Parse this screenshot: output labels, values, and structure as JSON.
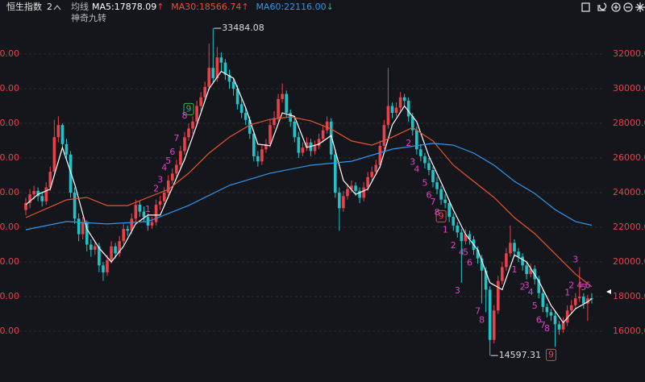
{
  "header": {
    "title": "恒生指数",
    "count": "2",
    "ma_label": "均线",
    "indicator": "神奇九转"
  },
  "chart_data": {
    "type": "candlestick",
    "up_color": "#e8414a",
    "down_color": "#21c3c8",
    "ylim": [
      13600,
      34400
    ],
    "yticks": [
      {
        "value": 16000,
        "label": "16000.00"
      },
      {
        "value": 18000,
        "label": "18000.00"
      },
      {
        "value": 20000,
        "label": "20000.00"
      },
      {
        "value": 22000,
        "label": "22000.00"
      },
      {
        "value": 24000,
        "label": "24000.00"
      },
      {
        "value": 26000,
        "label": "26000.00"
      },
      {
        "value": 28000,
        "label": "28000.00"
      },
      {
        "value": 30000,
        "label": "30000.00"
      },
      {
        "value": 32000,
        "label": "32000.00"
      }
    ],
    "grid": true,
    "high_index": 46,
    "low_index": 114,
    "candles": [
      [
        23000,
        23700,
        22700,
        23400
      ],
      [
        23400,
        24200,
        23100,
        23900
      ],
      [
        23900,
        24400,
        23600,
        24100
      ],
      [
        24100,
        24300,
        23500,
        23800
      ],
      [
        23800,
        24000,
        23200,
        23500
      ],
      [
        23500,
        24600,
        23300,
        24300
      ],
      [
        24300,
        25500,
        24100,
        25200
      ],
      [
        25200,
        28200,
        25000,
        27200
      ],
      [
        27200,
        28400,
        26900,
        27900
      ],
      [
        27900,
        28000,
        26500,
        26800
      ],
      [
        26800,
        27100,
        25900,
        26200
      ],
      [
        26200,
        26400,
        23700,
        24000
      ],
      [
        24000,
        24300,
        22200,
        22500
      ],
      [
        22500,
        22800,
        21200,
        21600
      ],
      [
        21600,
        22600,
        21300,
        22300
      ],
      [
        22300,
        22400,
        20600,
        21000
      ],
      [
        21000,
        21300,
        20300,
        20700
      ],
      [
        20700,
        21200,
        20400,
        20900
      ],
      [
        20900,
        21100,
        19400,
        19800
      ],
      [
        19800,
        20000,
        18900,
        19400
      ],
      [
        19400,
        20400,
        19200,
        20100
      ],
      [
        20100,
        21200,
        19900,
        20900
      ],
      [
        20900,
        21100,
        20200,
        20500
      ],
      [
        20500,
        21500,
        20300,
        21200
      ],
      [
        21200,
        22200,
        21000,
        21900
      ],
      [
        21900,
        22100,
        21500,
        21800
      ],
      [
        21800,
        22800,
        21600,
        22500
      ],
      [
        22500,
        23600,
        22300,
        23300
      ],
      [
        23300,
        23500,
        22600,
        22900
      ],
      [
        22900,
        23200,
        22300,
        22600
      ],
      [
        22600,
        22800,
        21800,
        22100
      ],
      [
        22100,
        22600,
        21900,
        22300
      ],
      [
        22300,
        23600,
        22100,
        23300
      ],
      [
        23300,
        23800,
        23000,
        23500
      ],
      [
        23500,
        24300,
        23300,
        24000
      ],
      [
        24000,
        25000,
        23800,
        24700
      ],
      [
        24700,
        25400,
        24500,
        25100
      ],
      [
        25100,
        25900,
        24900,
        25600
      ],
      [
        25600,
        26700,
        25400,
        26400
      ],
      [
        26400,
        27500,
        26200,
        27200
      ],
      [
        27200,
        28000,
        27000,
        27700
      ],
      [
        27700,
        28400,
        27400,
        28100
      ],
      [
        28100,
        29300,
        27900,
        29000
      ],
      [
        29000,
        29800,
        28700,
        29500
      ],
      [
        29500,
        30400,
        29300,
        30100
      ],
      [
        30100,
        32600,
        29900,
        31200
      ],
      [
        31200,
        33484.08,
        30300,
        30600
      ],
      [
        30600,
        32400,
        30400,
        31800
      ],
      [
        31800,
        32100,
        31000,
        31500
      ],
      [
        31500,
        31700,
        30500,
        30800
      ],
      [
        30800,
        31100,
        30000,
        30400
      ],
      [
        30400,
        30600,
        29600,
        30000
      ],
      [
        30000,
        30200,
        28800,
        29100
      ],
      [
        29100,
        29400,
        28300,
        28600
      ],
      [
        28600,
        28900,
        27900,
        28200
      ],
      [
        28200,
        28400,
        27100,
        27400
      ],
      [
        27400,
        27600,
        25800,
        26100
      ],
      [
        26100,
        26400,
        25500,
        25800
      ],
      [
        25800,
        26800,
        25600,
        26500
      ],
      [
        26500,
        27100,
        26300,
        26800
      ],
      [
        26800,
        28200,
        26600,
        27900
      ],
      [
        27900,
        28700,
        27700,
        28300
      ],
      [
        28300,
        29700,
        28100,
        29400
      ],
      [
        29400,
        30300,
        29200,
        29700
      ],
      [
        29700,
        29900,
        28300,
        28600
      ],
      [
        28600,
        28800,
        27800,
        28100
      ],
      [
        28100,
        28400,
        26900,
        27200
      ],
      [
        27200,
        27500,
        26000,
        26300
      ],
      [
        26300,
        26900,
        26100,
        26600
      ],
      [
        26600,
        27200,
        26400,
        26900
      ],
      [
        26900,
        27100,
        26100,
        26400
      ],
      [
        26400,
        27000,
        26200,
        26700
      ],
      [
        26700,
        27400,
        26500,
        27100
      ],
      [
        27100,
        27900,
        26900,
        27600
      ],
      [
        27600,
        28400,
        27400,
        28100
      ],
      [
        28100,
        28300,
        25900,
        26200
      ],
      [
        26200,
        26500,
        23700,
        24000
      ],
      [
        24000,
        24300,
        21800,
        23100
      ],
      [
        23100,
        24100,
        22900,
        23800
      ],
      [
        23800,
        24500,
        23600,
        24200
      ],
      [
        24200,
        24700,
        24000,
        24400
      ],
      [
        24400,
        24600,
        23800,
        24100
      ],
      [
        24100,
        24300,
        23400,
        23700
      ],
      [
        23700,
        24600,
        23500,
        24300
      ],
      [
        24300,
        25200,
        24100,
        24900
      ],
      [
        24900,
        25500,
        24700,
        25200
      ],
      [
        25200,
        25900,
        25000,
        25600
      ],
      [
        25600,
        27000,
        25400,
        26700
      ],
      [
        26700,
        28200,
        26500,
        27900
      ],
      [
        27900,
        31200,
        27700,
        29000
      ],
      [
        29000,
        29200,
        28300,
        28600
      ],
      [
        28600,
        29200,
        28400,
        28900
      ],
      [
        28900,
        29800,
        28700,
        29500
      ],
      [
        29500,
        29700,
        29000,
        29300
      ],
      [
        29300,
        29500,
        28100,
        28400
      ],
      [
        28400,
        28600,
        27300,
        27600
      ],
      [
        27600,
        27800,
        26200,
        26500
      ],
      [
        26500,
        26800,
        25800,
        26100
      ],
      [
        26100,
        26300,
        25400,
        25700
      ],
      [
        25700,
        26000,
        25000,
        25300
      ],
      [
        25300,
        25500,
        24300,
        24600
      ],
      [
        24600,
        24900,
        23900,
        24200
      ],
      [
        24200,
        24400,
        23300,
        23600
      ],
      [
        23600,
        23900,
        23100,
        23400
      ],
      [
        23400,
        23600,
        22300,
        22600
      ],
      [
        22600,
        22800,
        21800,
        22100
      ],
      [
        22100,
        22300,
        21400,
        21700
      ],
      [
        21700,
        21900,
        18800,
        21200
      ],
      [
        21200,
        21900,
        21000,
        21600
      ],
      [
        21600,
        21800,
        21000,
        21300
      ],
      [
        21300,
        21500,
        20400,
        20700
      ],
      [
        20700,
        20900,
        19900,
        20200
      ],
      [
        20200,
        20400,
        17600,
        19500
      ],
      [
        19500,
        19700,
        17100,
        18400
      ],
      [
        18400,
        18600,
        14597.31,
        15500
      ],
      [
        15500,
        17500,
        15300,
        17200
      ],
      [
        17200,
        19200,
        17000,
        18900
      ],
      [
        18900,
        20000,
        18700,
        19700
      ],
      [
        19700,
        20800,
        19500,
        20500
      ],
      [
        20500,
        22100,
        20300,
        21100
      ],
      [
        21100,
        21300,
        20300,
        20600
      ],
      [
        20600,
        20800,
        20000,
        20300
      ],
      [
        20300,
        20500,
        19500,
        19800
      ],
      [
        19800,
        20000,
        19000,
        19300
      ],
      [
        19300,
        19900,
        19100,
        19600
      ],
      [
        19600,
        19800,
        18700,
        19000
      ],
      [
        19000,
        19200,
        17900,
        18200
      ],
      [
        18200,
        18400,
        17100,
        17400
      ],
      [
        17400,
        17600,
        16800,
        17100
      ],
      [
        17100,
        17300,
        16600,
        16900
      ],
      [
        16900,
        17100,
        15100,
        16400
      ],
      [
        16400,
        16600,
        15800,
        16100
      ],
      [
        16100,
        16800,
        15900,
        16500
      ],
      [
        16500,
        17500,
        16300,
        17200
      ],
      [
        17200,
        17800,
        17000,
        17500
      ],
      [
        17500,
        18200,
        17300,
        17900
      ],
      [
        17900,
        19700,
        17700,
        18000
      ],
      [
        18000,
        18200,
        17300,
        17600
      ],
      [
        17600,
        18100,
        16600,
        17900
      ],
      [
        17900,
        18200,
        17600,
        17878
      ]
    ],
    "series": [
      {
        "name": "MA5",
        "legend": "MA5:17878.09",
        "trend": "↑",
        "trend_color": "#e8414a",
        "color": "#ffffff",
        "x": [
          0,
          3,
          6,
          9,
          12,
          15,
          18,
          21,
          24,
          27,
          30,
          33,
          36,
          39,
          42,
          45,
          48,
          51,
          54,
          57,
          60,
          63,
          66,
          69,
          72,
          75,
          78,
          81,
          84,
          87,
          90,
          93,
          96,
          99,
          102,
          105,
          108,
          111,
          114,
          117,
          120,
          123,
          126,
          129,
          132,
          135,
          138,
          139
        ],
        "values": [
          23300,
          23900,
          24200,
          26600,
          24500,
          21900,
          20800,
          20000,
          20900,
          22200,
          22700,
          22700,
          24300,
          25900,
          27900,
          30000,
          31000,
          30600,
          28900,
          26800,
          26700,
          28600,
          28400,
          26600,
          26800,
          27300,
          24700,
          23900,
          24200,
          25500,
          27900,
          29000,
          28100,
          26100,
          24600,
          23000,
          21600,
          20700,
          18800,
          18400,
          20400,
          20000,
          18900,
          17500,
          16500,
          17300,
          17700,
          17878
        ]
      },
      {
        "name": "MA30",
        "legend": "MA30:18566.74",
        "trend": "↑",
        "trend_color": "#e8414a",
        "color": "#e5532f",
        "x": [
          0,
          10,
          15,
          20,
          25,
          30,
          35,
          40,
          45,
          50,
          55,
          60,
          65,
          70,
          75,
          80,
          85,
          90,
          95,
          100,
          105,
          110,
          115,
          120,
          125,
          130,
          135,
          139
        ],
        "values": [
          22560,
          23580,
          23720,
          23250,
          23250,
          23720,
          24180,
          25120,
          26280,
          27200,
          27900,
          28230,
          28370,
          28140,
          27670,
          26980,
          26740,
          27200,
          27760,
          26980,
          25580,
          24650,
          23720,
          22560,
          21630,
          20470,
          19300,
          18567
        ]
      },
      {
        "name": "MA60",
        "legend": "MA60:22116.00",
        "trend": "↓",
        "trend_color": "#21c35a",
        "color": "#2f96ee",
        "x": [
          0,
          10,
          20,
          30,
          40,
          50,
          60,
          70,
          80,
          90,
          100,
          105,
          110,
          115,
          120,
          125,
          130,
          135,
          139
        ],
        "values": [
          21860,
          22330,
          22190,
          22330,
          23260,
          24420,
          25120,
          25580,
          25810,
          26510,
          26840,
          26740,
          26280,
          25580,
          24650,
          23950,
          23020,
          22330,
          22116
        ]
      }
    ],
    "nine_turn": [
      {
        "sequence": "up",
        "color": "#e040c8",
        "box_color": "#2db84d",
        "marks": [
          {
            "index": 31,
            "label": "1"
          },
          {
            "index": 33,
            "label": "2"
          },
          {
            "index": 34,
            "label": "3"
          },
          {
            "index": 35,
            "label": "4"
          },
          {
            "index": 36,
            "label": "5"
          },
          {
            "index": 37,
            "label": "6"
          },
          {
            "index": 38,
            "label": "7"
          },
          {
            "index": 40,
            "label": "8"
          },
          {
            "index": 41,
            "label": "9",
            "boxed": true
          }
        ]
      },
      {
        "sequence": "down",
        "color": "#e040c8",
        "box_color": "#e8414a",
        "marks": [
          {
            "index": 95,
            "label": "2"
          },
          {
            "index": 96,
            "label": "3"
          },
          {
            "index": 97,
            "label": "4"
          },
          {
            "index": 99,
            "label": "5"
          },
          {
            "index": 100,
            "label": "6"
          },
          {
            "index": 101,
            "label": "7"
          },
          {
            "index": 102,
            "label": "8"
          },
          {
            "index": 103,
            "label": "9",
            "boxed": true
          }
        ]
      },
      {
        "sequence": "down",
        "color": "#e040c8",
        "box_color": "#e8414a",
        "marks": [
          {
            "index": 104,
            "label": "1"
          },
          {
            "index": 106,
            "label": "2"
          },
          {
            "index": 107,
            "label": "3"
          },
          {
            "index": 108,
            "label": "4"
          },
          {
            "index": 109,
            "label": "5"
          },
          {
            "index": 110,
            "label": "6"
          },
          {
            "index": 112,
            "label": "7"
          },
          {
            "index": 113,
            "label": "8"
          }
        ]
      },
      {
        "sequence": "down",
        "color": "#e040c8",
        "box_color": "#e8414a",
        "marks": [
          {
            "index": 121,
            "label": "1"
          },
          {
            "index": 123,
            "label": "2"
          },
          {
            "index": 124,
            "label": "3"
          },
          {
            "index": 125,
            "label": "4"
          },
          {
            "index": 126,
            "label": "5"
          },
          {
            "index": 127,
            "label": "6"
          },
          {
            "index": 128,
            "label": "7"
          },
          {
            "index": 129,
            "label": "8"
          },
          {
            "index": 130,
            "label": "9",
            "boxed": true
          }
        ]
      },
      {
        "sequence": "up",
        "color": "#e040c8",
        "box_color": "#2db84d",
        "marks": [
          {
            "index": 134,
            "label": "1"
          },
          {
            "index": 135,
            "label": "2"
          },
          {
            "index": 136,
            "label": "3"
          },
          {
            "index": 137,
            "label": "4"
          },
          {
            "index": 138,
            "label": "5"
          },
          {
            "index": 139,
            "label": "6"
          }
        ]
      }
    ]
  }
}
